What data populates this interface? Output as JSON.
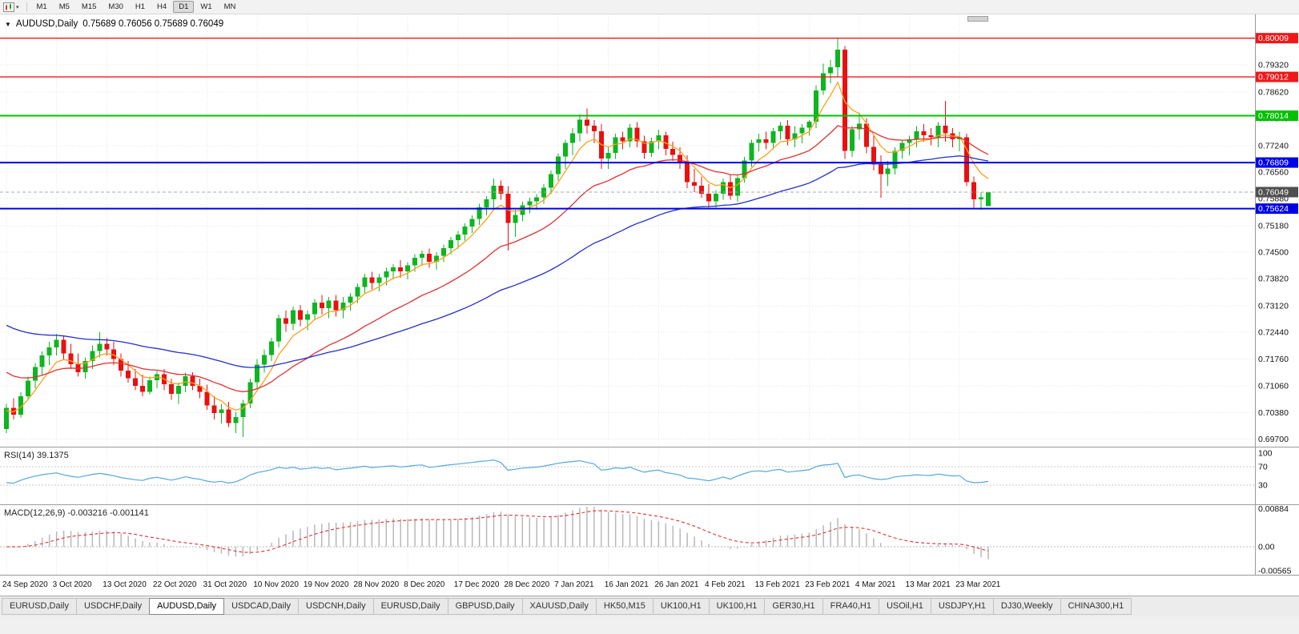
{
  "toolbar": {
    "timeframes": [
      "M1",
      "M5",
      "M15",
      "M30",
      "H1",
      "H4",
      "D1",
      "W1",
      "MN"
    ],
    "selected": "D1"
  },
  "icons": {
    "title_marker": "▼",
    "chart_selector_caret": "▾"
  },
  "chart": {
    "title_symbol": "AUDUSD,Daily",
    "title_ohlc": "0.75689 0.76056 0.75689 0.76049"
  },
  "price_axis_labels": [
    "0.79320",
    "0.78620",
    "0.77940",
    "0.77240",
    "0.76560",
    "0.75880",
    "0.75180",
    "0.74500",
    "0.73820",
    "0.73120",
    "0.72440",
    "0.71760",
    "0.71060",
    "0.70380",
    "0.69700"
  ],
  "hlines": [
    {
      "price": "0.80009",
      "color": "#f01818",
      "width": 1.4
    },
    {
      "price": "0.79012",
      "color": "#f01818",
      "width": 1.4
    },
    {
      "price": "0.78014",
      "color": "#00c000",
      "width": 2
    },
    {
      "price": "0.76809",
      "color": "#0000e8",
      "width": 2
    },
    {
      "price": "0.75624",
      "color": "#0000e8",
      "width": 2
    }
  ],
  "current_price": {
    "label": "0.76049",
    "line_color": "#a8a8a8",
    "badge_bg": "#4f4f4f"
  },
  "colors": {
    "bull": "#0db520",
    "bear": "#e81010",
    "grid": "#e7e7e7",
    "axis_text": "#111111",
    "panel_border": "#9a9a9a"
  },
  "chart_data": {
    "type": "candlestick",
    "symbol": "AUDUSD",
    "timeframe": "Daily",
    "ohlc_current": {
      "open": 0.75689,
      "high": 0.76056,
      "low": 0.75689,
      "close": 0.76049
    },
    "y_range": [
      0.697,
      0.80009
    ],
    "candles": [
      [
        0.6995,
        0.706,
        0.6985,
        0.705
      ],
      [
        0.705,
        0.7075,
        0.702,
        0.7032
      ],
      [
        0.7032,
        0.709,
        0.7025,
        0.708
      ],
      [
        0.708,
        0.713,
        0.707,
        0.712
      ],
      [
        0.712,
        0.7165,
        0.71,
        0.7155
      ],
      [
        0.7155,
        0.7195,
        0.7135,
        0.7185
      ],
      [
        0.7185,
        0.722,
        0.716,
        0.7205
      ],
      [
        0.7205,
        0.724,
        0.7185,
        0.7225
      ],
      [
        0.7225,
        0.7235,
        0.7175,
        0.719
      ],
      [
        0.719,
        0.7215,
        0.715,
        0.7162
      ],
      [
        0.7162,
        0.719,
        0.713,
        0.7142
      ],
      [
        0.7142,
        0.718,
        0.7125,
        0.717
      ],
      [
        0.717,
        0.721,
        0.715,
        0.7196
      ],
      [
        0.7196,
        0.7245,
        0.718,
        0.7215
      ],
      [
        0.7215,
        0.723,
        0.7185,
        0.72
      ],
      [
        0.72,
        0.722,
        0.716,
        0.7176
      ],
      [
        0.7176,
        0.719,
        0.713,
        0.7146
      ],
      [
        0.7146,
        0.717,
        0.7115,
        0.7126
      ],
      [
        0.7126,
        0.715,
        0.7095,
        0.7106
      ],
      [
        0.7106,
        0.7135,
        0.708,
        0.7091
      ],
      [
        0.7091,
        0.713,
        0.7085,
        0.7121
      ],
      [
        0.7121,
        0.7145,
        0.71,
        0.7136
      ],
      [
        0.7136,
        0.715,
        0.7095,
        0.7111
      ],
      [
        0.7111,
        0.7125,
        0.707,
        0.7086
      ],
      [
        0.7086,
        0.7115,
        0.706,
        0.7106
      ],
      [
        0.7106,
        0.714,
        0.709,
        0.7131
      ],
      [
        0.7131,
        0.7141,
        0.7095,
        0.7106
      ],
      [
        0.7106,
        0.7125,
        0.7075,
        0.7091
      ],
      [
        0.7091,
        0.711,
        0.7045,
        0.7056
      ],
      [
        0.7056,
        0.708,
        0.702,
        0.7036
      ],
      [
        0.7036,
        0.706,
        0.701,
        0.7046
      ],
      [
        0.7046,
        0.7065,
        0.7,
        0.7011
      ],
      [
        0.7011,
        0.704,
        0.6985,
        0.7026
      ],
      [
        0.7026,
        0.707,
        0.6975,
        0.7061
      ],
      [
        0.7061,
        0.7125,
        0.7049,
        0.7116
      ],
      [
        0.7116,
        0.7175,
        0.71,
        0.7161
      ],
      [
        0.7161,
        0.72,
        0.714,
        0.7186
      ],
      [
        0.7186,
        0.723,
        0.717,
        0.7221
      ],
      [
        0.7221,
        0.729,
        0.7205,
        0.7281
      ],
      [
        0.7281,
        0.73,
        0.7245,
        0.7266
      ],
      [
        0.7266,
        0.731,
        0.725,
        0.7301
      ],
      [
        0.7301,
        0.7315,
        0.726,
        0.7276
      ],
      [
        0.7276,
        0.73,
        0.725,
        0.7291
      ],
      [
        0.7291,
        0.733,
        0.7275,
        0.7321
      ],
      [
        0.7321,
        0.734,
        0.729,
        0.7306
      ],
      [
        0.7306,
        0.7335,
        0.728,
        0.7326
      ],
      [
        0.7326,
        0.734,
        0.7285,
        0.7301
      ],
      [
        0.7301,
        0.7335,
        0.728,
        0.7321
      ],
      [
        0.7321,
        0.7345,
        0.73,
        0.7336
      ],
      [
        0.7336,
        0.737,
        0.732,
        0.7361
      ],
      [
        0.7361,
        0.7395,
        0.7345,
        0.7386
      ],
      [
        0.7386,
        0.74,
        0.7355,
        0.7371
      ],
      [
        0.7371,
        0.7395,
        0.735,
        0.7386
      ],
      [
        0.7386,
        0.741,
        0.7365,
        0.7401
      ],
      [
        0.7401,
        0.742,
        0.738,
        0.7411
      ],
      [
        0.7411,
        0.743,
        0.7385,
        0.7401
      ],
      [
        0.7401,
        0.7425,
        0.738,
        0.7416
      ],
      [
        0.7416,
        0.7445,
        0.74,
        0.7436
      ],
      [
        0.7436,
        0.7455,
        0.7415,
        0.7446
      ],
      [
        0.7446,
        0.746,
        0.741,
        0.7426
      ],
      [
        0.7426,
        0.745,
        0.7405,
        0.7441
      ],
      [
        0.7441,
        0.747,
        0.7425,
        0.7461
      ],
      [
        0.7461,
        0.749,
        0.7445,
        0.7481
      ],
      [
        0.7481,
        0.7505,
        0.746,
        0.7496
      ],
      [
        0.7496,
        0.7525,
        0.748,
        0.7516
      ],
      [
        0.7516,
        0.7545,
        0.75,
        0.7536
      ],
      [
        0.7536,
        0.7575,
        0.752,
        0.7566
      ],
      [
        0.7566,
        0.7595,
        0.7545,
        0.7586
      ],
      [
        0.7586,
        0.764,
        0.7565,
        0.7621
      ],
      [
        0.7621,
        0.7635,
        0.7585,
        0.7601
      ],
      [
        0.7601,
        0.762,
        0.7455,
        0.7526
      ],
      [
        0.7526,
        0.756,
        0.749,
        0.7546
      ],
      [
        0.7546,
        0.758,
        0.753,
        0.7571
      ],
      [
        0.7571,
        0.759,
        0.755,
        0.7581
      ],
      [
        0.7581,
        0.76,
        0.756,
        0.7591
      ],
      [
        0.7591,
        0.7625,
        0.7575,
        0.7616
      ],
      [
        0.7616,
        0.766,
        0.76,
        0.7651
      ],
      [
        0.7651,
        0.7705,
        0.7635,
        0.7696
      ],
      [
        0.7696,
        0.774,
        0.7665,
        0.7731
      ],
      [
        0.7731,
        0.777,
        0.77,
        0.7756
      ],
      [
        0.7756,
        0.7805,
        0.7735,
        0.7791
      ],
      [
        0.7791,
        0.782,
        0.7755,
        0.7776
      ],
      [
        0.7776,
        0.779,
        0.773,
        0.7761
      ],
      [
        0.7761,
        0.778,
        0.7665,
        0.7691
      ],
      [
        0.7691,
        0.772,
        0.7665,
        0.7706
      ],
      [
        0.7706,
        0.7755,
        0.769,
        0.7746
      ],
      [
        0.7746,
        0.776,
        0.7715,
        0.7736
      ],
      [
        0.7736,
        0.778,
        0.772,
        0.7771
      ],
      [
        0.7771,
        0.7785,
        0.772,
        0.7736
      ],
      [
        0.7736,
        0.775,
        0.769,
        0.7706
      ],
      [
        0.7706,
        0.7745,
        0.7695,
        0.7736
      ],
      [
        0.7736,
        0.7765,
        0.7715,
        0.7751
      ],
      [
        0.7751,
        0.776,
        0.77,
        0.7716
      ],
      [
        0.7716,
        0.7735,
        0.7685,
        0.7701
      ],
      [
        0.7701,
        0.772,
        0.7665,
        0.7681
      ],
      [
        0.7681,
        0.77,
        0.7615,
        0.7631
      ],
      [
        0.7631,
        0.7665,
        0.7605,
        0.7621
      ],
      [
        0.7621,
        0.7645,
        0.759,
        0.7601
      ],
      [
        0.7601,
        0.7625,
        0.7565,
        0.7581
      ],
      [
        0.7581,
        0.761,
        0.7565,
        0.7601
      ],
      [
        0.7601,
        0.764,
        0.7585,
        0.7631
      ],
      [
        0.7631,
        0.765,
        0.7585,
        0.7596
      ],
      [
        0.7596,
        0.765,
        0.758,
        0.7641
      ],
      [
        0.7641,
        0.7695,
        0.763,
        0.7686
      ],
      [
        0.7686,
        0.774,
        0.767,
        0.7731
      ],
      [
        0.7731,
        0.7755,
        0.771,
        0.7741
      ],
      [
        0.7741,
        0.776,
        0.7715,
        0.7731
      ],
      [
        0.7731,
        0.777,
        0.7715,
        0.7761
      ],
      [
        0.7761,
        0.7785,
        0.774,
        0.7776
      ],
      [
        0.7776,
        0.779,
        0.7725,
        0.7741
      ],
      [
        0.7741,
        0.7775,
        0.772,
        0.7756
      ],
      [
        0.7756,
        0.778,
        0.773,
        0.7771
      ],
      [
        0.7771,
        0.779,
        0.775,
        0.7786
      ],
      [
        0.7786,
        0.788,
        0.777,
        0.7866
      ],
      [
        0.7866,
        0.7935,
        0.7855,
        0.7911
      ],
      [
        0.7911,
        0.7945,
        0.7885,
        0.7926
      ],
      [
        0.7926,
        0.8001,
        0.79,
        0.7971
      ],
      [
        0.7971,
        0.7981,
        0.769,
        0.7711
      ],
      [
        0.7711,
        0.7775,
        0.7695,
        0.7766
      ],
      [
        0.7766,
        0.781,
        0.774,
        0.7781
      ],
      [
        0.7781,
        0.7795,
        0.7705,
        0.7721
      ],
      [
        0.7721,
        0.775,
        0.766,
        0.7676
      ],
      [
        0.7676,
        0.77,
        0.759,
        0.7651
      ],
      [
        0.7651,
        0.7685,
        0.762,
        0.7666
      ],
      [
        0.7666,
        0.772,
        0.765,
        0.7711
      ],
      [
        0.7711,
        0.774,
        0.769,
        0.7731
      ],
      [
        0.7731,
        0.775,
        0.77,
        0.7741
      ],
      [
        0.7741,
        0.7775,
        0.772,
        0.7761
      ],
      [
        0.7761,
        0.778,
        0.7735,
        0.7751
      ],
      [
        0.7751,
        0.777,
        0.7725,
        0.7746
      ],
      [
        0.7746,
        0.7785,
        0.772,
        0.7776
      ],
      [
        0.7776,
        0.784,
        0.7735,
        0.7756
      ],
      [
        0.7756,
        0.777,
        0.772,
        0.7741
      ],
      [
        0.7741,
        0.776,
        0.771,
        0.7746
      ],
      [
        0.7746,
        0.7755,
        0.762,
        0.7631
      ],
      [
        0.7631,
        0.7645,
        0.7565,
        0.7586
      ],
      [
        0.7586,
        0.7605,
        0.756,
        0.7591
      ],
      [
        0.75689,
        0.76056,
        0.75689,
        0.76049
      ]
    ],
    "x_labels": [
      {
        "text": "24 Sep 2020",
        "bar": 0
      },
      {
        "text": "3 Oct 2020",
        "bar": 7
      },
      {
        "text": "13 Oct 2020",
        "bar": 14
      },
      {
        "text": "22 Oct 2020",
        "bar": 21
      },
      {
        "text": "31 Oct 2020",
        "bar": 28
      },
      {
        "text": "10 Nov 2020",
        "bar": 35
      },
      {
        "text": "19 Nov 2020",
        "bar": 42
      },
      {
        "text": "28 Nov 2020",
        "bar": 49
      },
      {
        "text": "8 Dec 2020",
        "bar": 56
      },
      {
        "text": "17 Dec 2020",
        "bar": 63
      },
      {
        "text": "28 Dec 2020",
        "bar": 70
      },
      {
        "text": "7 Jan 2021",
        "bar": 77
      },
      {
        "text": "16 Jan 2021",
        "bar": 84
      },
      {
        "text": "26 Jan 2021",
        "bar": 91
      },
      {
        "text": "4 Feb 2021",
        "bar": 98
      },
      {
        "text": "13 Feb 2021",
        "bar": 105
      },
      {
        "text": "23 Feb 2021",
        "bar": 112
      },
      {
        "text": "4 Mar 2021",
        "bar": 119
      },
      {
        "text": "13 Mar 2021",
        "bar": 126
      },
      {
        "text": "23 Mar 2021",
        "bar": 133
      }
    ],
    "moving_averages": [
      {
        "name": "fast",
        "period": 6,
        "seed": 0.704,
        "color": "#ff9f1a"
      },
      {
        "name": "medium",
        "period": 22,
        "seed": 0.715,
        "color": "#e03131"
      },
      {
        "name": "slow",
        "period": 55,
        "seed": 0.727,
        "color": "#2030c8"
      }
    ],
    "indicators": {
      "rsi": {
        "label": "RSI(14)",
        "value": "39.1375",
        "levels": [
          "100",
          "70",
          "30"
        ],
        "color": "#53a8dc"
      },
      "macd": {
        "label": "MACD(12,26,9)",
        "values": "-0.003216 -0.001141",
        "axis": [
          "0.00884",
          "0.00",
          "-0.00565"
        ],
        "hist_color": "#b8b8b8",
        "signal_color": "#e03030"
      }
    }
  },
  "bottom_tabs": [
    {
      "label": "EURUSD,Daily"
    },
    {
      "label": "USDCHF,Daily"
    },
    {
      "label": "AUDUSD,Daily",
      "active": true
    },
    {
      "label": "USDCAD,Daily"
    },
    {
      "label": "USDCNH,Daily"
    },
    {
      "label": "EURUSD,Daily"
    },
    {
      "label": "GBPUSD,Daily"
    },
    {
      "label": "XAUUSD,Daily"
    },
    {
      "label": "HK50,M15"
    },
    {
      "label": "UK100,H1"
    },
    {
      "label": "UK100,H1"
    },
    {
      "label": "GER30,H1"
    },
    {
      "label": "FRA40,H1"
    },
    {
      "label": "USOil,H1"
    },
    {
      "label": "USDJPY,H1"
    },
    {
      "label": "DJ30,Weekly"
    },
    {
      "label": "CHINA300,H1"
    }
  ]
}
